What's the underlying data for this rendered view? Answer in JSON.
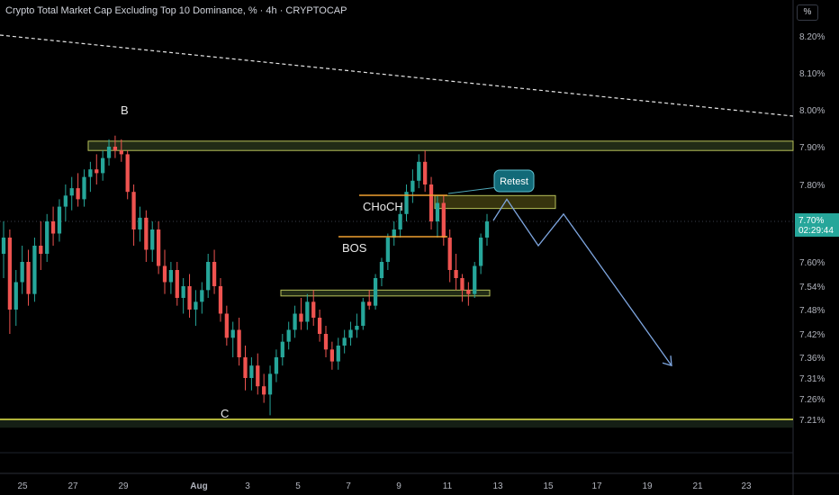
{
  "header": {
    "title": "Crypto Total Market Cap Excluding Top 10 Dominance, % · 4h · CRYPTOCAP"
  },
  "scale_button": "%",
  "price_badge": {
    "price": "7.70%",
    "countdown": "02:29:44"
  },
  "colors": {
    "background": "#000000",
    "up": "#26a69a",
    "down": "#ef5350",
    "zone_fill": "#2c3a1e",
    "zone_border": "#b8c25a",
    "support_line": "#e6e84a",
    "orange": "#f0a030",
    "projection": "#7ea6e0",
    "badge": "#26a69a"
  },
  "chart_data": {
    "type": "candlestick",
    "y_ticks": [
      "8.20%",
      "8.10%",
      "8.00%",
      "7.90%",
      "7.80%",
      "7.70%",
      "7.60%",
      "7.54%",
      "7.48%",
      "7.42%",
      "7.36%",
      "7.31%",
      "7.26%",
      "7.21%"
    ],
    "x_ticks": [
      "25",
      "27",
      "29",
      "Aug",
      "3",
      "5",
      "7",
      "9",
      "11",
      "13",
      "15",
      "17",
      "19",
      "21",
      "23"
    ],
    "last_price": 7.7,
    "candles": [
      [
        7.62,
        7.7,
        7.56,
        7.66
      ],
      [
        7.66,
        7.68,
        7.42,
        7.48
      ],
      [
        7.48,
        7.58,
        7.44,
        7.55
      ],
      [
        7.55,
        7.64,
        7.52,
        7.6
      ],
      [
        7.6,
        7.63,
        7.49,
        7.52
      ],
      [
        7.52,
        7.66,
        7.5,
        7.64
      ],
      [
        7.64,
        7.7,
        7.58,
        7.62
      ],
      [
        7.62,
        7.72,
        7.6,
        7.7
      ],
      [
        7.7,
        7.74,
        7.64,
        7.67
      ],
      [
        7.67,
        7.76,
        7.65,
        7.74
      ],
      [
        7.74,
        7.8,
        7.7,
        7.77
      ],
      [
        7.77,
        7.82,
        7.73,
        7.79
      ],
      [
        7.79,
        7.83,
        7.74,
        7.76
      ],
      [
        7.76,
        7.84,
        7.74,
        7.82
      ],
      [
        7.82,
        7.86,
        7.78,
        7.84
      ],
      [
        7.84,
        7.88,
        7.8,
        7.83
      ],
      [
        7.83,
        7.89,
        7.81,
        7.87
      ],
      [
        7.87,
        7.92,
        7.85,
        7.9
      ],
      [
        7.9,
        7.93,
        7.87,
        7.89
      ],
      [
        7.89,
        7.92,
        7.86,
        7.88
      ],
      [
        7.88,
        7.89,
        7.76,
        7.78
      ],
      [
        7.78,
        7.8,
        7.64,
        7.68
      ],
      [
        7.68,
        7.74,
        7.65,
        7.71
      ],
      [
        7.71,
        7.73,
        7.6,
        7.63
      ],
      [
        7.63,
        7.7,
        7.6,
        7.68
      ],
      [
        7.68,
        7.7,
        7.57,
        7.59
      ],
      [
        7.59,
        7.63,
        7.52,
        7.55
      ],
      [
        7.55,
        7.6,
        7.52,
        7.58
      ],
      [
        7.58,
        7.6,
        7.49,
        7.51
      ],
      [
        7.51,
        7.56,
        7.47,
        7.54
      ],
      [
        7.54,
        7.57,
        7.46,
        7.48
      ],
      [
        7.48,
        7.53,
        7.44,
        7.5
      ],
      [
        7.5,
        7.55,
        7.47,
        7.53
      ],
      [
        7.53,
        7.62,
        7.51,
        7.6
      ],
      [
        7.6,
        7.63,
        7.52,
        7.54
      ],
      [
        7.54,
        7.56,
        7.45,
        7.47
      ],
      [
        7.47,
        7.49,
        7.39,
        7.41
      ],
      [
        7.41,
        7.45,
        7.36,
        7.43
      ],
      [
        7.43,
        7.46,
        7.34,
        7.36
      ],
      [
        7.36,
        7.39,
        7.28,
        7.31
      ],
      [
        7.31,
        7.36,
        7.28,
        7.34
      ],
      [
        7.34,
        7.37,
        7.27,
        7.29
      ],
      [
        7.29,
        7.32,
        7.25,
        7.27
      ],
      [
        7.27,
        7.34,
        7.22,
        7.32
      ],
      [
        7.32,
        7.38,
        7.3,
        7.36
      ],
      [
        7.36,
        7.42,
        7.34,
        7.4
      ],
      [
        7.4,
        7.45,
        7.38,
        7.43
      ],
      [
        7.43,
        7.49,
        7.41,
        7.47
      ],
      [
        7.47,
        7.51,
        7.43,
        7.45
      ],
      [
        7.45,
        7.52,
        7.43,
        7.5
      ],
      [
        7.5,
        7.53,
        7.44,
        7.46
      ],
      [
        7.46,
        7.48,
        7.4,
        7.42
      ],
      [
        7.42,
        7.44,
        7.36,
        7.38
      ],
      [
        7.38,
        7.4,
        7.33,
        7.35
      ],
      [
        7.35,
        7.41,
        7.33,
        7.39
      ],
      [
        7.39,
        7.43,
        7.37,
        7.41
      ],
      [
        7.41,
        7.45,
        7.39,
        7.43
      ],
      [
        7.43,
        7.47,
        7.41,
        7.44
      ],
      [
        7.44,
        7.51,
        7.43,
        7.5
      ],
      [
        7.5,
        7.53,
        7.48,
        7.49
      ],
      [
        7.49,
        7.57,
        7.48,
        7.56
      ],
      [
        7.56,
        7.61,
        7.54,
        7.6
      ],
      [
        7.6,
        7.67,
        7.58,
        7.66
      ],
      [
        7.66,
        7.7,
        7.64,
        7.68
      ],
      [
        7.68,
        7.74,
        7.66,
        7.72
      ],
      [
        7.72,
        7.8,
        7.7,
        7.78
      ],
      [
        7.78,
        7.84,
        7.75,
        7.81
      ],
      [
        7.81,
        7.88,
        7.79,
        7.86
      ],
      [
        7.86,
        7.89,
        7.78,
        7.8
      ],
      [
        7.8,
        7.82,
        7.68,
        7.7
      ],
      [
        7.7,
        7.77,
        7.66,
        7.75
      ],
      [
        7.75,
        7.77,
        7.64,
        7.66
      ],
      [
        7.66,
        7.68,
        7.55,
        7.58
      ],
      [
        7.58,
        7.62,
        7.53,
        7.56
      ],
      [
        7.56,
        7.57,
        7.5,
        7.53
      ],
      [
        7.53,
        7.55,
        7.49,
        7.52
      ],
      [
        7.52,
        7.6,
        7.51,
        7.59
      ],
      [
        7.59,
        7.67,
        7.57,
        7.66
      ],
      [
        7.66,
        7.72,
        7.64,
        7.7
      ]
    ],
    "zones": [
      {
        "from": 7.89,
        "to": 7.915
      },
      {
        "from": 7.735,
        "to": 7.77,
        "label": "Retest"
      },
      {
        "from": 7.515,
        "to": 7.53
      },
      {
        "from": 7.19,
        "to": 7.21
      }
    ],
    "labels": [
      "B",
      "C",
      "CHoCH",
      "BOS",
      "Retest"
    ],
    "projection": [
      7.76,
      7.64,
      7.72,
      7.34
    ]
  }
}
